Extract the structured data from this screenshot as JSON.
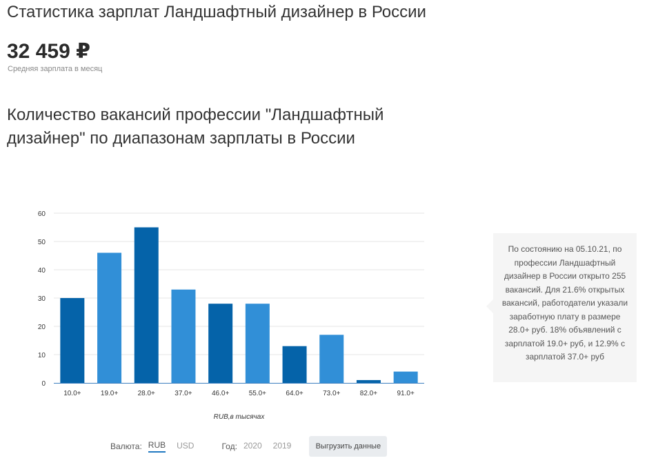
{
  "header": {
    "title": "Статистика зарплат Ландшафтный дизайнер в России",
    "salary_value": "32 459 ₽",
    "salary_caption": "Средняя зарплата в месяц"
  },
  "section": {
    "title": "Количество вакансий профессии \"Ландшафтный дизайнер\" по диапазонам зарплаты в России"
  },
  "chart_data": {
    "type": "bar",
    "categories": [
      "10.0+",
      "19.0+",
      "28.0+",
      "37.0+",
      "46.0+",
      "55.0+",
      "64.0+",
      "73.0+",
      "82.0+",
      "91.0+"
    ],
    "values": [
      30,
      46,
      55,
      33,
      28,
      28,
      13,
      17,
      1,
      4
    ],
    "xlabel": "RUB,в тысячах",
    "ylabel": "",
    "ylim": [
      0,
      60
    ],
    "yticks": [
      0,
      10,
      20,
      30,
      40,
      50,
      60
    ],
    "grid": true,
    "colors": {
      "dark": "#0563a9",
      "light": "#318fd7"
    }
  },
  "info": {
    "text": "По состоянию на 05.10.21, по профессии Ландшафтный дизайнер в России открыто 255 вакансий. Для 21.6% открытых вакансий, работодатели указали заработную плату в размере 28.0+ руб. 18% объявлений с зарплатой 19.0+ руб, и 12.9% с зарплатой 37.0+ руб"
  },
  "controls": {
    "currency_label": "Валюта:",
    "currency_options": [
      "RUB",
      "USD"
    ],
    "year_label": "Год:",
    "year_options": [
      "2020",
      "2019"
    ],
    "export_label": "Выгрузить данные"
  }
}
